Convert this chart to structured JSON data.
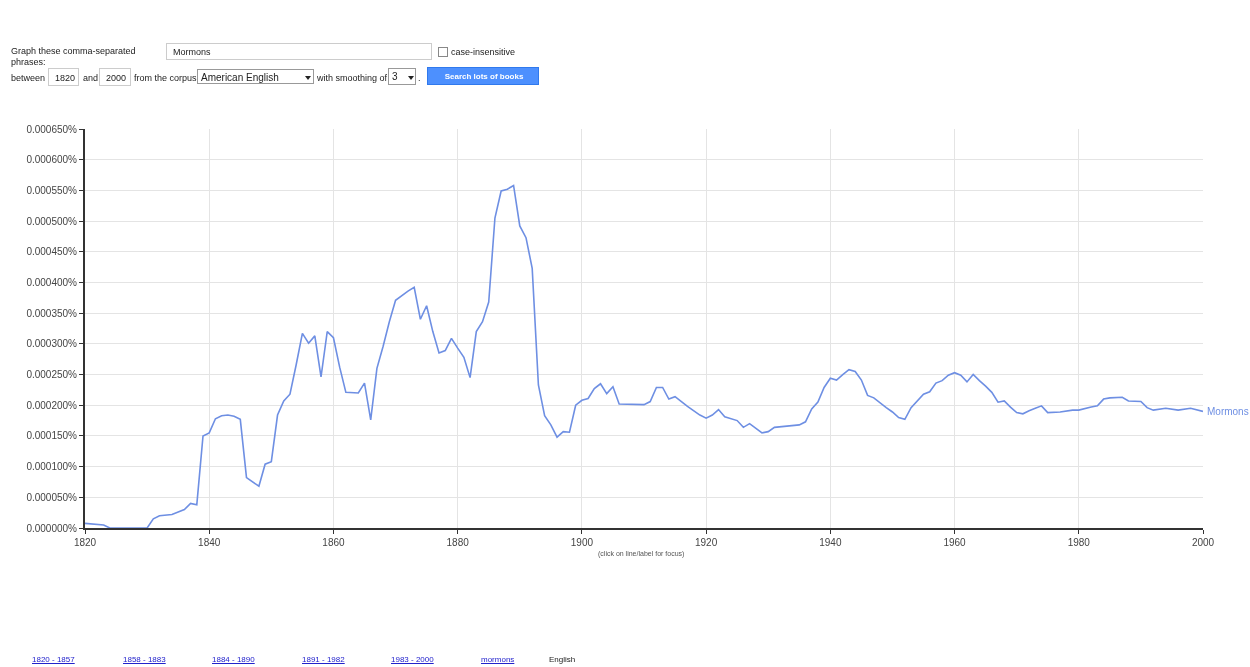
{
  "chart_data": {
    "type": "line",
    "x": [
      1820,
      1823,
      1824,
      1830,
      1831,
      1832,
      1834,
      1836,
      1837,
      1838,
      1839,
      1840,
      1841,
      1842,
      1843,
      1844,
      1845,
      1846,
      1848,
      1849,
      1850,
      1851,
      1852,
      1853,
      1854,
      1855,
      1856,
      1857,
      1858,
      1859,
      1860,
      1861,
      1862,
      1864,
      1865,
      1866,
      1867,
      1868,
      1869,
      1870,
      1872,
      1873,
      1874,
      1875,
      1876,
      1877,
      1878,
      1879,
      1880,
      1881,
      1882,
      1883,
      1884,
      1885,
      1886,
      1887,
      1888,
      1889,
      1890,
      1891,
      1892,
      1893,
      1894,
      1895,
      1896,
      1897,
      1898,
      1899,
      1900,
      1901,
      1902,
      1903,
      1904,
      1905,
      1906,
      1910,
      1911,
      1912,
      1913,
      1914,
      1915,
      1917,
      1919,
      1920,
      1921,
      1922,
      1923,
      1925,
      1926,
      1927,
      1929,
      1930,
      1931,
      1933,
      1935,
      1936,
      1937,
      1938,
      1939,
      1940,
      1941,
      1942,
      1943,
      1944,
      1945,
      1946,
      1947,
      1949,
      1950,
      1951,
      1952,
      1953,
      1955,
      1956,
      1957,
      1958,
      1959,
      1960,
      1961,
      1962,
      1963,
      1964,
      1965,
      1966,
      1967,
      1968,
      1969,
      1970,
      1971,
      1972,
      1973,
      1974,
      1975,
      1977,
      1979,
      1980,
      1982,
      1983,
      1984,
      1985,
      1987,
      1988,
      1990,
      1991,
      1992,
      1994,
      1996,
      1998,
      2000
    ],
    "series": [
      {
        "name": "Mormons",
        "color": "#6e8fe3",
        "values": [
          7.5e-06,
          5e-06,
          0,
          0,
          1.5e-05,
          2e-05,
          2.2e-05,
          3e-05,
          4e-05,
          3.8e-05,
          0.00015,
          0.000155,
          0.000178,
          0.000183,
          0.000184,
          0.000182,
          0.000177,
          8.2e-05,
          6.8e-05,
          0.000104,
          0.000108,
          0.000184,
          0.000207,
          0.000218,
          0.000266,
          0.000317,
          0.000301,
          0.000313,
          0.000246,
          0.00032,
          0.00031,
          0.000262,
          0.000221,
          0.00022,
          0.000236,
          0.000176,
          0.00026,
          0.000296,
          0.000336,
          0.000371,
          0.000386,
          0.000392,
          0.00034,
          0.000362,
          0.00032,
          0.000285,
          0.000289,
          0.000309,
          0.000293,
          0.000278,
          0.000245,
          0.00032,
          0.000336,
          0.000368,
          0.000505,
          0.000549,
          0.000552,
          0.000558,
          0.000492,
          0.000473,
          0.000423,
          0.000233,
          0.000183,
          0.000168,
          0.000148,
          0.000157,
          0.000156,
          0.0002,
          0.000208,
          0.000211,
          0.000227,
          0.000235,
          0.000219,
          0.00023,
          0.000202,
          0.000201,
          0.000206,
          0.000229,
          0.000229,
          0.00021,
          0.000214,
          0.000198,
          0.000184,
          0.000179,
          0.000184,
          0.000193,
          0.000181,
          0.000175,
          0.000164,
          0.00017,
          0.000155,
          0.000157,
          0.000164,
          0.000166,
          0.000168,
          0.000173,
          0.000194,
          0.000205,
          0.000229,
          0.000244,
          0.000241,
          0.00025,
          0.000258,
          0.000255,
          0.000241,
          0.000216,
          0.000212,
          0.000196,
          0.000189,
          0.00018,
          0.000177,
          0.000196,
          0.000218,
          0.000222,
          0.000236,
          0.00024,
          0.000249,
          0.000253,
          0.000249,
          0.000238,
          0.00025,
          0.00024,
          0.000231,
          0.000221,
          0.000205,
          0.000207,
          0.000197,
          0.000188,
          0.000186,
          0.000191,
          0.000195,
          0.000199,
          0.000188,
          0.000189,
          0.000192,
          0.000192,
          0.000197,
          0.000199,
          0.00021,
          0.000212,
          0.000213,
          0.000207,
          0.000206,
          0.000196,
          0.000192,
          0.000195,
          0.000192,
          0.000195,
          0.00019
        ]
      }
    ],
    "xlim": [
      1820,
      2000
    ],
    "xticks": [
      1820,
      1840,
      1860,
      1880,
      1900,
      1920,
      1940,
      1960,
      1980,
      2000
    ],
    "ylim": [
      0,
      0.00065
    ],
    "yticks": [
      {
        "value": 0,
        "label": "0.000000%"
      },
      {
        "value": 5e-05,
        "label": "0.000050%"
      },
      {
        "value": 0.0001,
        "label": "0.000100%"
      },
      {
        "value": 0.00015,
        "label": "0.000150%"
      },
      {
        "value": 0.0002,
        "label": "0.000200%"
      },
      {
        "value": 0.00025,
        "label": "0.000250%"
      },
      {
        "value": 0.0003,
        "label": "0.000300%"
      },
      {
        "value": 0.00035,
        "label": "0.000350%"
      },
      {
        "value": 0.0004,
        "label": "0.000400%"
      },
      {
        "value": 0.00045,
        "label": "0.000450%"
      },
      {
        "value": 0.0005,
        "label": "0.000500%"
      },
      {
        "value": 0.00055,
        "label": "0.000550%"
      },
      {
        "value": 0.0006,
        "label": "0.000600%"
      },
      {
        "value": 0.00065,
        "label": "0.000650%"
      }
    ],
    "grid": true,
    "legend": false,
    "marker": "none",
    "line_style": "solid",
    "annotations": [
      "Graph these comma-separated phrases:",
      "Mormons",
      "case-insensitive",
      "between",
      "1820",
      "and",
      "2000",
      "from the corpus",
      "American English",
      "with smoothing of",
      "3",
      ".",
      "Search lots of books",
      "(click on line/label for focus)",
      "1820 - 1857",
      "1858 - 1883",
      "1884 - 1890",
      "1891 - 1982",
      "1983 - 2000",
      "mormons",
      "English"
    ]
  }
}
